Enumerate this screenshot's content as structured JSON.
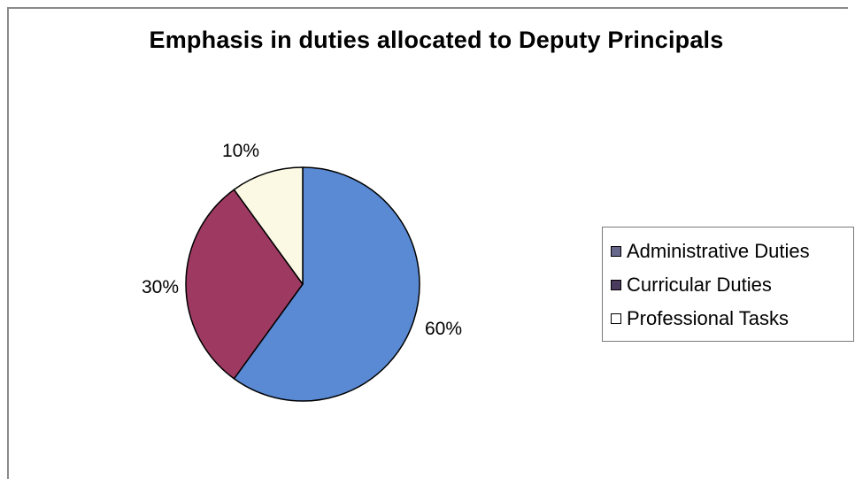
{
  "chart_data": {
    "type": "pie",
    "title": "Emphasis in duties allocated to Deputy Principals",
    "slices": [
      {
        "label": "Administrative Duties",
        "value": 60,
        "display": "60%",
        "color": "#5a8ad4"
      },
      {
        "label": "Curricular Duties",
        "value": 30,
        "display": "30%",
        "color": "#9e3a62"
      },
      {
        "label": "Professional Tasks",
        "value": 10,
        "display": "10%",
        "color": "#fbf8e4"
      }
    ],
    "legend_swatch_colors": [
      "#67678c",
      "#4a3a5e",
      "#ffffff"
    ],
    "legend_position": "right",
    "start_angle": "12 o'clock",
    "direction": "clockwise"
  }
}
